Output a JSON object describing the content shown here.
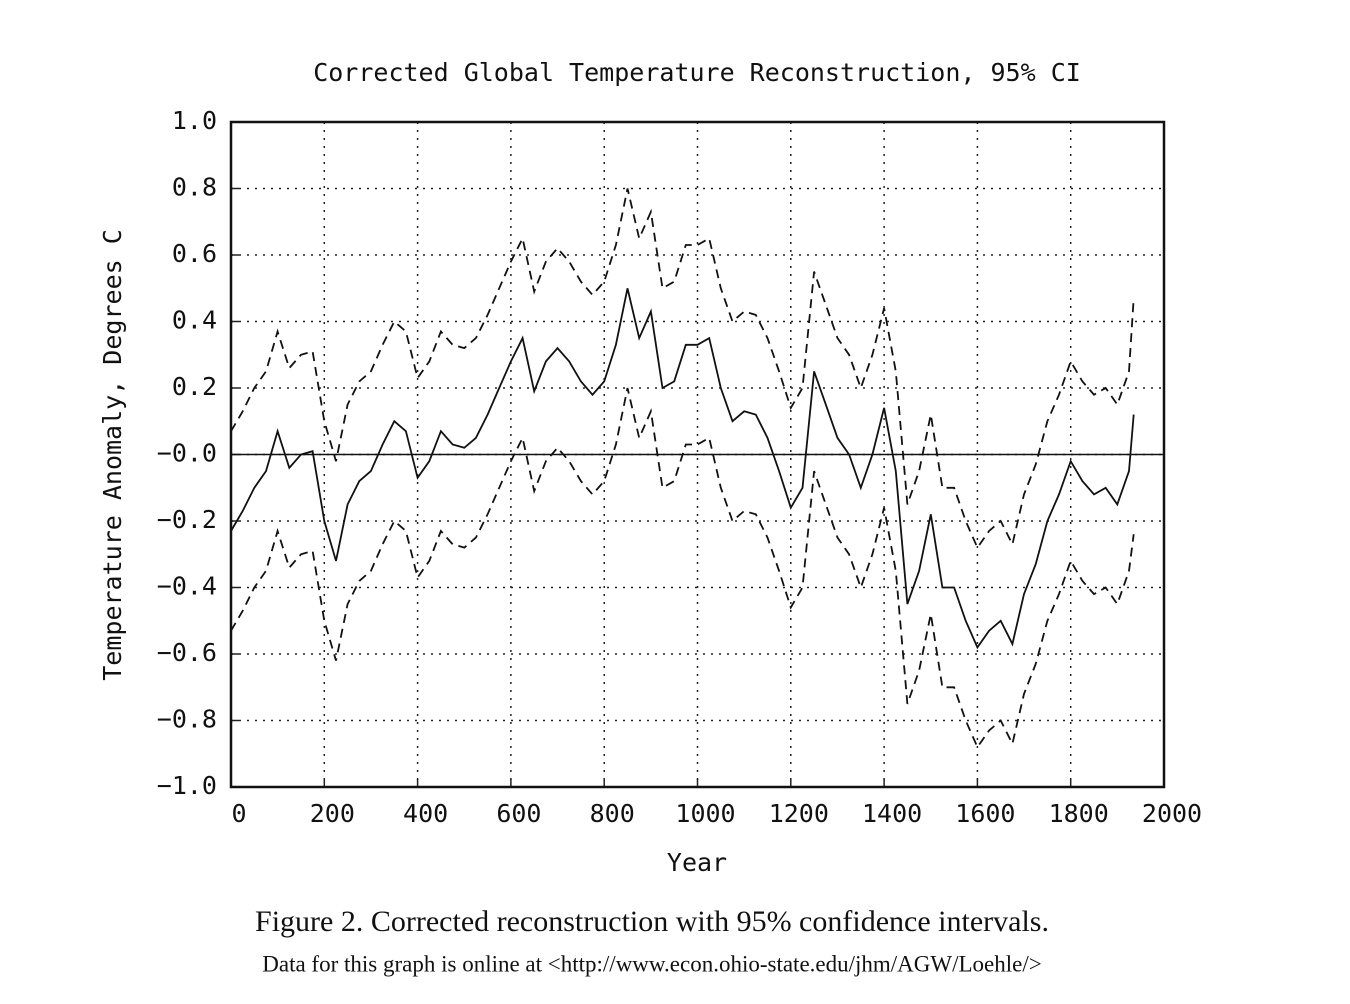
{
  "chart_data": {
    "type": "line",
    "title": "Corrected Global Temperature Reconstruction, 95% CI",
    "xlabel": "Year",
    "ylabel": "Temperature Anomaly, Degrees C",
    "x": [
      0,
      25,
      50,
      75,
      100,
      125,
      150,
      175,
      200,
      225,
      250,
      275,
      300,
      325,
      350,
      375,
      400,
      425,
      450,
      475,
      500,
      525,
      550,
      575,
      600,
      625,
      650,
      675,
      700,
      725,
      750,
      775,
      800,
      825,
      850,
      875,
      900,
      925,
      950,
      975,
      1000,
      1025,
      1050,
      1075,
      1100,
      1125,
      1150,
      1175,
      1200,
      1225,
      1250,
      1275,
      1300,
      1325,
      1350,
      1375,
      1400,
      1425,
      1450,
      1475,
      1500,
      1525,
      1550,
      1575,
      1600,
      1625,
      1650,
      1675,
      1700,
      1725,
      1750,
      1775,
      1800,
      1825,
      1850,
      1875,
      1900,
      1925,
      1935
    ],
    "series": [
      {
        "color": "#111111",
        "style": "solid",
        "values": [
          -0.23,
          -0.17,
          -0.1,
          -0.05,
          0.07,
          -0.04,
          0.0,
          0.01,
          -0.2,
          -0.32,
          -0.15,
          -0.08,
          -0.05,
          0.03,
          0.1,
          0.07,
          -0.07,
          -0.02,
          0.07,
          0.03,
          0.02,
          0.05,
          0.12,
          0.2,
          0.28,
          0.35,
          0.19,
          0.28,
          0.32,
          0.28,
          0.22,
          0.18,
          0.22,
          0.33,
          0.5,
          0.35,
          0.43,
          0.2,
          0.22,
          0.33,
          0.33,
          0.35,
          0.2,
          0.1,
          0.13,
          0.12,
          0.05,
          -0.05,
          -0.16,
          -0.1,
          0.25,
          0.15,
          0.05,
          0.0,
          -0.1,
          0.0,
          0.14,
          -0.05,
          -0.45,
          -0.35,
          -0.18,
          -0.4,
          -0.4,
          -0.5,
          -0.58,
          -0.53,
          -0.5,
          -0.57,
          -0.42,
          -0.33,
          -0.2,
          -0.12,
          -0.02,
          -0.08,
          -0.12,
          -0.1,
          -0.15,
          -0.05,
          0.12
        ]
      },
      {
        "color": "#111111",
        "style": "dashed",
        "values": [
          0.07,
          0.13,
          0.2,
          0.25,
          0.37,
          0.26,
          0.3,
          0.31,
          0.1,
          -0.02,
          0.15,
          0.22,
          0.25,
          0.33,
          0.4,
          0.37,
          0.23,
          0.28,
          0.37,
          0.33,
          0.32,
          0.35,
          0.42,
          0.5,
          0.58,
          0.65,
          0.49,
          0.58,
          0.62,
          0.58,
          0.52,
          0.48,
          0.52,
          0.63,
          0.8,
          0.65,
          0.73,
          0.5,
          0.52,
          0.63,
          0.63,
          0.65,
          0.5,
          0.4,
          0.43,
          0.42,
          0.35,
          0.25,
          0.14,
          0.2,
          0.55,
          0.45,
          0.35,
          0.3,
          0.2,
          0.3,
          0.44,
          0.25,
          -0.15,
          -0.05,
          0.12,
          -0.1,
          -0.1,
          -0.2,
          -0.28,
          -0.23,
          -0.2,
          -0.27,
          -0.12,
          -0.03,
          0.1,
          0.18,
          0.28,
          0.22,
          0.18,
          0.2,
          0.15,
          0.25,
          0.47
        ]
      },
      {
        "color": "#111111",
        "style": "dashed",
        "values": [
          -0.53,
          -0.47,
          -0.4,
          -0.35,
          -0.23,
          -0.34,
          -0.3,
          -0.29,
          -0.5,
          -0.62,
          -0.45,
          -0.38,
          -0.35,
          -0.27,
          -0.2,
          -0.23,
          -0.37,
          -0.32,
          -0.23,
          -0.27,
          -0.28,
          -0.25,
          -0.18,
          -0.1,
          -0.02,
          0.05,
          -0.11,
          -0.02,
          0.02,
          -0.02,
          -0.08,
          -0.12,
          -0.08,
          0.03,
          0.2,
          0.05,
          0.13,
          -0.1,
          -0.08,
          0.03,
          0.03,
          0.05,
          -0.1,
          -0.2,
          -0.17,
          -0.18,
          -0.25,
          -0.35,
          -0.46,
          -0.4,
          -0.05,
          -0.15,
          -0.25,
          -0.3,
          -0.4,
          -0.3,
          -0.16,
          -0.35,
          -0.75,
          -0.65,
          -0.48,
          -0.7,
          -0.7,
          -0.8,
          -0.88,
          -0.83,
          -0.8,
          -0.87,
          -0.72,
          -0.63,
          -0.5,
          -0.42,
          -0.32,
          -0.38,
          -0.42,
          -0.4,
          -0.45,
          -0.35,
          -0.24
        ]
      }
    ],
    "xlim": [
      0,
      2000
    ],
    "xticks": [
      0,
      200,
      400,
      600,
      800,
      1000,
      1200,
      1400,
      1600,
      1800,
      2000
    ],
    "ylim": [
      -1,
      1
    ],
    "yticks": [
      {
        "value": 1,
        "label": "1.0"
      },
      {
        "value": 0.8,
        "label": "0.8"
      },
      {
        "value": 0.6,
        "label": "0.6"
      },
      {
        "value": 0.4,
        "label": "0.4"
      },
      {
        "value": 0.2,
        "label": "0.2"
      },
      {
        "value": 0,
        "label": "−0.0"
      },
      {
        "value": -0.2,
        "label": "−0.2"
      },
      {
        "value": -0.4,
        "label": "−0.4"
      },
      {
        "value": -0.6,
        "label": "−0.6"
      },
      {
        "value": -0.8,
        "label": "−0.8"
      },
      {
        "value": -1,
        "label": "−1.0"
      }
    ],
    "grid": true
  },
  "caption": "Figure 2. Corrected reconstruction with 95% confidence intervals.",
  "note": "Data for this graph is online at <http://www.econ.ohio-state.edu/jhm/AGW/Loehle/>"
}
